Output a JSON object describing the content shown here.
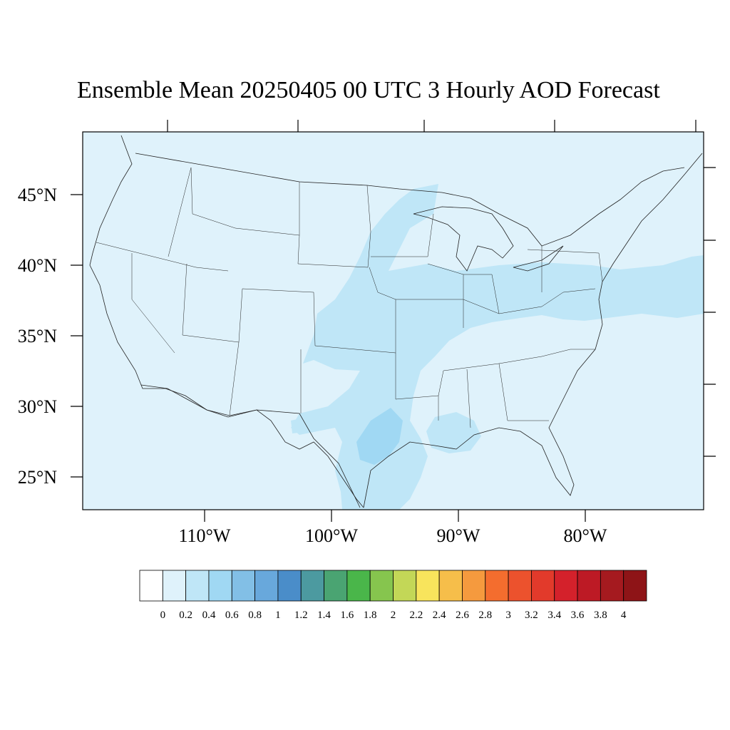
{
  "title": "Ensemble Mean 20250405 00 UTC 3 Hourly AOD Forecast",
  "lat_labels": [
    "45°N",
    "40°N",
    "35°N",
    "30°N",
    "25°N"
  ],
  "lon_labels": [
    "110°W",
    "100°W",
    "90°W",
    "80°W"
  ],
  "colorbar": {
    "labels": [
      "0",
      "0.2",
      "0.4",
      "0.6",
      "0.8",
      "1",
      "1.2",
      "1.4",
      "1.6",
      "1.8",
      "2",
      "2.2",
      "2.4",
      "2.6",
      "2.8",
      "3",
      "3.2",
      "3.4",
      "3.6",
      "3.8",
      "4"
    ],
    "colors": [
      "#ffffff",
      "#dff2fb",
      "#bfe6f7",
      "#a0d8f3",
      "#82bfe6",
      "#68a8dc",
      "#4a8dc9",
      "#4c9aa0",
      "#4aa472",
      "#4ab64a",
      "#86c54e",
      "#c3d757",
      "#f8e45c",
      "#f6be4a",
      "#f59a3e",
      "#f46d2e",
      "#ec522d",
      "#e23a2b",
      "#d4212b",
      "#bd1a25",
      "#a51a1f",
      "#8e1417"
    ]
  },
  "map": {
    "background_color": "#dff2fb",
    "plume_color": "#bfe6f7",
    "hotspot_color": "#a0d8f3"
  }
}
